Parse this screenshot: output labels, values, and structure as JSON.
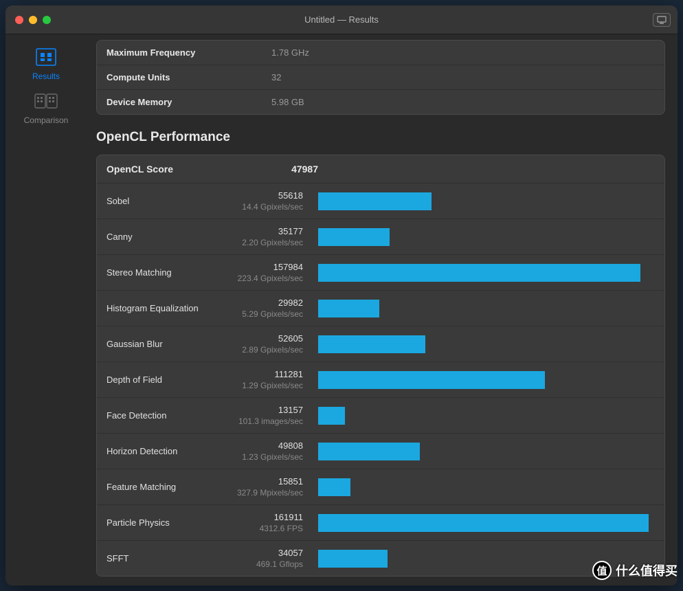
{
  "window": {
    "title": "Untitled — Results"
  },
  "sidebar": {
    "items": [
      {
        "label": "Results",
        "icon": "results",
        "active": true
      },
      {
        "label": "Comparison",
        "icon": "comparison",
        "active": false
      }
    ]
  },
  "device_specs": {
    "rows": [
      {
        "label": "Maximum Frequency",
        "value": "1.78 GHz"
      },
      {
        "label": "Compute Units",
        "value": "32"
      },
      {
        "label": "Device Memory",
        "value": "5.98 GB"
      }
    ]
  },
  "performance": {
    "section_title": "OpenCL Performance",
    "header_label": "OpenCL Score",
    "header_score": "47987",
    "bar_color": "#1ba8e0",
    "max_score": 165000,
    "tests": [
      {
        "name": "Sobel",
        "score": "55618",
        "sub": "14.4 Gpixels/sec",
        "value": 55618
      },
      {
        "name": "Canny",
        "score": "35177",
        "sub": "2.20 Gpixels/sec",
        "value": 35177
      },
      {
        "name": "Stereo Matching",
        "score": "157984",
        "sub": "223.4 Gpixels/sec",
        "value": 157984
      },
      {
        "name": "Histogram Equalization",
        "score": "29982",
        "sub": "5.29 Gpixels/sec",
        "value": 29982
      },
      {
        "name": "Gaussian Blur",
        "score": "52605",
        "sub": "2.89 Gpixels/sec",
        "value": 52605
      },
      {
        "name": "Depth of Field",
        "score": "111281",
        "sub": "1.29 Gpixels/sec",
        "value": 111281
      },
      {
        "name": "Face Detection",
        "score": "13157",
        "sub": "101.3 images/sec",
        "value": 13157
      },
      {
        "name": "Horizon Detection",
        "score": "49808",
        "sub": "1.23 Gpixels/sec",
        "value": 49808
      },
      {
        "name": "Feature Matching",
        "score": "15851",
        "sub": "327.9 Mpixels/sec",
        "value": 15851
      },
      {
        "name": "Particle Physics",
        "score": "161911",
        "sub": "4312.6 FPS",
        "value": 161911
      },
      {
        "name": "SFFT",
        "score": "34057",
        "sub": "469.1 Gflops",
        "value": 34057
      }
    ]
  },
  "watermark": {
    "badge": "值",
    "text": "什么值得买"
  },
  "colors": {
    "accent": "#0a84ff",
    "bar": "#1ba8e0",
    "panel_bg": "#3a3a3a",
    "window_bg": "#2a2a2a",
    "titlebar_bg": "#363636"
  }
}
